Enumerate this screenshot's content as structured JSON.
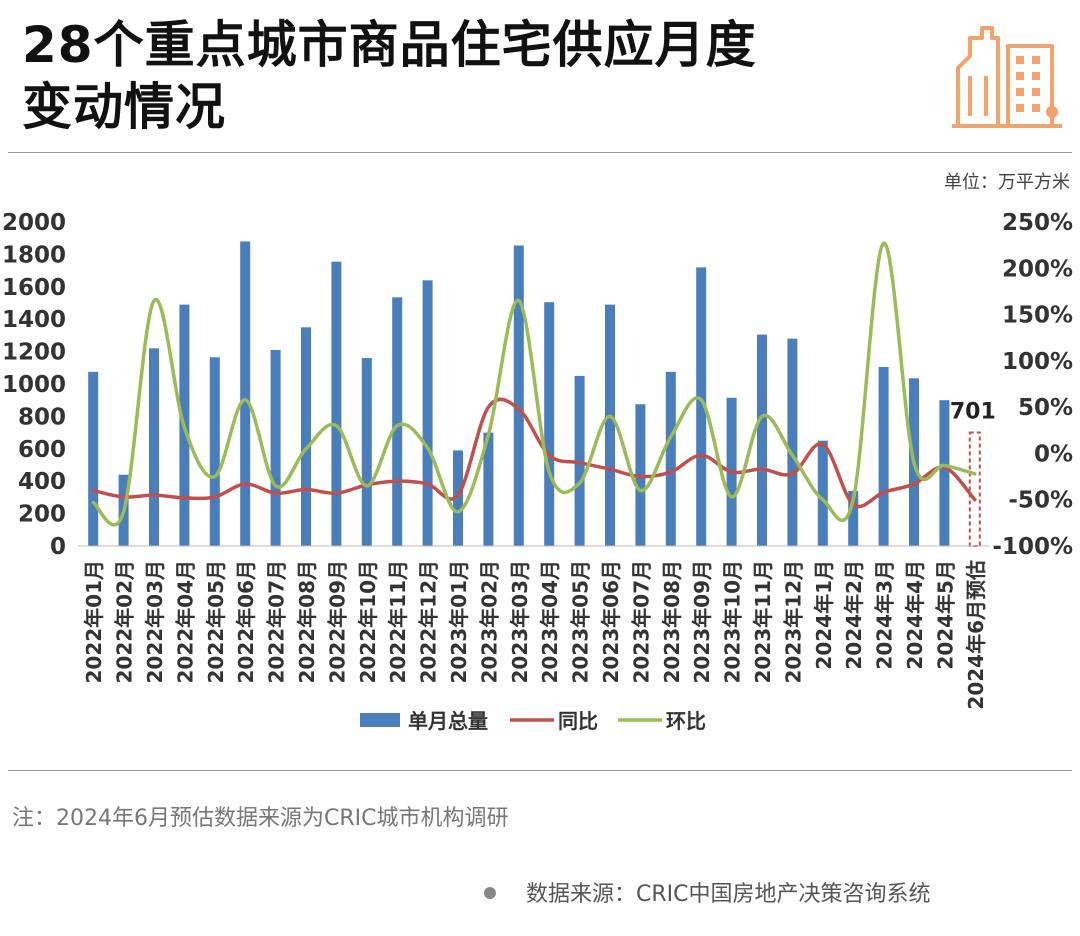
{
  "header": {
    "title_line1": "28个重点城市商品住宅供应月度",
    "title_line2": "变动情况",
    "logo_icon": "city-buildings-icon",
    "accent_color": "#f2a36b"
  },
  "unit_label": "单位：万平方米",
  "note": "注：2024年6月预估数据来源为CRIC城市机构调研",
  "source": "数据来源：CRIC中国房地产决策咨询系统",
  "chart_data": {
    "type": "bar",
    "categories": [
      "2022年01月",
      "2022年02月",
      "2022年03月",
      "2022年04月",
      "2022年05月",
      "2022年06月",
      "2022年07月",
      "2022年08月",
      "2022年09月",
      "2022年10月",
      "2022年11月",
      "2022年12月",
      "2023年01月",
      "2023年02月",
      "2023年03月",
      "2023年04月",
      "2023年05月",
      "2023年06月",
      "2023年07月",
      "2023年08月",
      "2023年09月",
      "2023年10月",
      "2023年11月",
      "2023年12月",
      "2024年1月",
      "2024年2月",
      "2024年3月",
      "2024年4月",
      "2024年5月",
      "2024年6月预估"
    ],
    "series": [
      {
        "name": "单月总量",
        "type": "bar",
        "axis": "left",
        "color": "#4a7ebb",
        "values": [
          1075,
          440,
          1220,
          1490,
          1165,
          1880,
          1210,
          1350,
          1755,
          1160,
          1535,
          1640,
          590,
          700,
          1855,
          1505,
          1050,
          1490,
          875,
          1075,
          1720,
          915,
          1305,
          1280,
          650,
          340,
          1105,
          1035,
          900,
          701
        ]
      },
      {
        "name": "同比",
        "type": "line",
        "axis": "right",
        "color": "#c0504d",
        "values": [
          -40,
          -47,
          -45,
          -48,
          -47,
          -33,
          -43,
          -39,
          -43,
          -34,
          -30,
          -33,
          -45,
          50,
          48,
          -2,
          -10,
          -17,
          -25,
          -20,
          -2,
          -20,
          -17,
          -22,
          10,
          -55,
          -42,
          -33,
          -15,
          -50
        ]
      },
      {
        "name": "环比",
        "type": "line",
        "axis": "right",
        "color": "#9bbb59",
        "values": [
          -53,
          -63,
          165,
          28,
          -25,
          58,
          -35,
          5,
          30,
          -35,
          30,
          6,
          -63,
          20,
          165,
          -20,
          -32,
          40,
          -40,
          18,
          58,
          -47,
          40,
          -2,
          -50,
          -50,
          227,
          -10,
          -13,
          -22
        ]
      }
    ],
    "y_left": {
      "min": 0,
      "max": 2000,
      "ticks": [
        0,
        200,
        400,
        600,
        800,
        1000,
        1200,
        1400,
        1600,
        1800,
        2000
      ]
    },
    "y_right": {
      "min": -100,
      "max": 250,
      "ticks": [
        "-100%",
        "-50%",
        "0%",
        "50%",
        "100%",
        "150%",
        "200%",
        "250%"
      ]
    },
    "highlight_label": "701",
    "forecast_index": 29,
    "legend_position": "bottom",
    "grid": false
  }
}
